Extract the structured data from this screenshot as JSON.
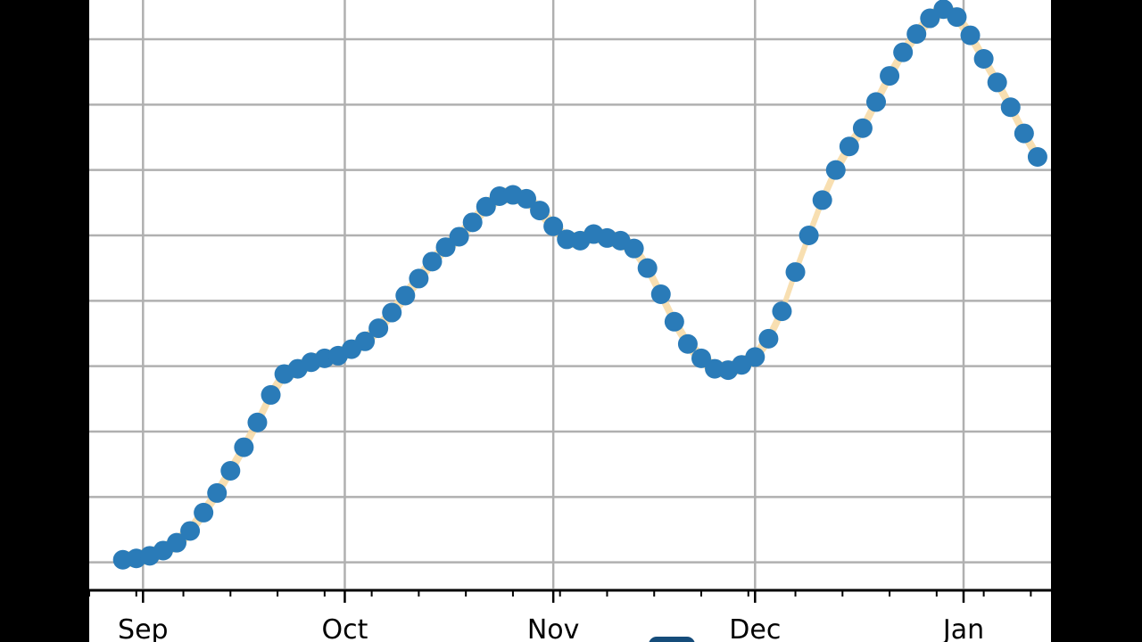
{
  "chart_data": {
    "type": "scatter",
    "title": "",
    "xlabel": "",
    "ylabel": "",
    "x_ticks": [
      "Sep",
      "Oct",
      "Nov",
      "Dec",
      "Jan"
    ],
    "x": [
      "2020-08-29",
      "2020-08-31",
      "2020-09-02",
      "2020-09-04",
      "2020-09-06",
      "2020-09-08",
      "2020-09-10",
      "2020-09-12",
      "2020-09-14",
      "2020-09-16",
      "2020-09-18",
      "2020-09-20",
      "2020-09-22",
      "2020-09-24",
      "2020-09-26",
      "2020-09-28",
      "2020-09-30",
      "2020-10-02",
      "2020-10-04",
      "2020-10-06",
      "2020-10-08",
      "2020-10-10",
      "2020-10-12",
      "2020-10-14",
      "2020-10-16",
      "2020-10-18",
      "2020-10-20",
      "2020-10-22",
      "2020-10-24",
      "2020-10-26",
      "2020-10-28",
      "2020-10-30",
      "2020-11-01",
      "2020-11-03",
      "2020-11-05",
      "2020-11-07",
      "2020-11-09",
      "2020-11-11",
      "2020-11-13",
      "2020-11-15",
      "2020-11-17",
      "2020-11-19",
      "2020-11-21",
      "2020-11-23",
      "2020-11-25",
      "2020-11-27",
      "2020-11-29",
      "2020-12-01",
      "2020-12-03",
      "2020-12-05",
      "2020-12-07",
      "2020-12-09",
      "2020-12-11",
      "2020-12-13",
      "2020-12-15",
      "2020-12-17",
      "2020-12-19",
      "2020-12-21",
      "2020-12-23",
      "2020-12-25",
      "2020-12-27",
      "2020-12-29",
      "2020-12-31",
      "2021-01-02",
      "2021-01-04",
      "2021-01-06",
      "2021-01-08",
      "2021-01-10",
      "2021-01-12"
    ],
    "y": [
      0.1,
      0.15,
      0.25,
      0.45,
      0.75,
      1.2,
      1.9,
      2.65,
      3.5,
      4.4,
      5.35,
      6.4,
      7.2,
      7.4,
      7.65,
      7.8,
      7.9,
      8.15,
      8.45,
      8.95,
      9.55,
      10.2,
      10.85,
      11.5,
      12.05,
      12.45,
      13.0,
      13.6,
      14.0,
      14.05,
      13.9,
      13.45,
      12.85,
      12.35,
      12.3,
      12.55,
      12.4,
      12.3,
      12.0,
      11.25,
      10.25,
      9.2,
      8.35,
      7.8,
      7.4,
      7.35,
      7.55,
      7.85,
      8.55,
      9.6,
      11.1,
      12.5,
      13.85,
      15.0,
      15.9,
      16.6,
      17.6,
      18.6,
      19.5,
      20.2,
      20.8,
      21.15,
      20.85,
      20.15,
      19.25,
      18.35,
      17.4,
      16.4,
      15.5
    ],
    "xlim": [
      "2020-08-24",
      "2021-01-14"
    ],
    "ylim": [
      -1.0,
      21.5
    ],
    "grid": true,
    "marker_color": "#2a7bb8",
    "band_color": "#f7d9a3",
    "legend_color": "#154c7a"
  }
}
